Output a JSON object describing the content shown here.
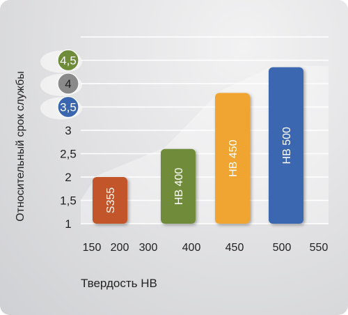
{
  "chart_data": {
    "type": "bar",
    "xlabel": "Твердость HB",
    "ylabel": "Относительный срок службы",
    "ylim": [
      1,
      5
    ],
    "y_ticks": [
      "1",
      "1,5",
      "2",
      "2,5",
      "3",
      "3,5",
      "4",
      "4,5"
    ],
    "x_ticks": [
      "150",
      "200",
      "300",
      "400",
      "450",
      "500",
      "550"
    ],
    "highlighted_ticks": {
      "4,5": "#6f8c3a",
      "4": "#8a8a8a",
      "3,5": "#3a66b0"
    },
    "categories": [
      "S355",
      "HB 400",
      "HB 450",
      "HB 500"
    ],
    "values": [
      2.0,
      2.6,
      3.8,
      4.35
    ],
    "colors": [
      "#c2552a",
      "#6f8c3a",
      "#f0a531",
      "#3a66b0"
    ],
    "grid": true,
    "legend": "none"
  }
}
